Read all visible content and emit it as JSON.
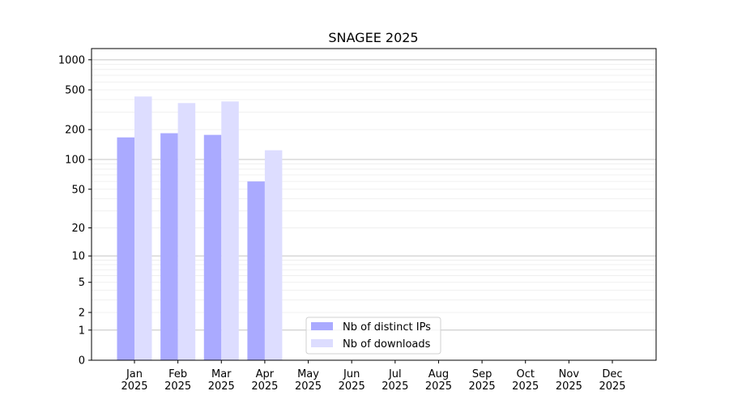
{
  "chart_data": {
    "type": "bar",
    "title": "SNAGEE 2025",
    "xlabel": "",
    "ylabel": "",
    "yscale": "log10(1+y)",
    "ylim": [
      0,
      1294
    ],
    "grid": true,
    "legend_position": "bottom-center",
    "categories": [
      "Jan\n2025",
      "Feb\n2025",
      "Mar\n2025",
      "Apr\n2025",
      "May\n2025",
      "Jun\n2025",
      "Jul\n2025",
      "Aug\n2025",
      "Sep\n2025",
      "Oct\n2025",
      "Nov\n2025",
      "Dec\n2025"
    ],
    "yticks": [
      0,
      1,
      2,
      5,
      10,
      20,
      50,
      100,
      200,
      500,
      1000
    ],
    "series": [
      {
        "name": "Nb of distinct IPs",
        "color": "#aaaaff",
        "values": [
          167,
          184,
          177,
          60,
          0,
          0,
          0,
          0,
          0,
          0,
          0,
          0
        ]
      },
      {
        "name": "Nb of downloads",
        "color": "#ddddff",
        "values": [
          429,
          369,
          383,
          124,
          0,
          0,
          0,
          0,
          0,
          0,
          0,
          0
        ]
      }
    ]
  }
}
